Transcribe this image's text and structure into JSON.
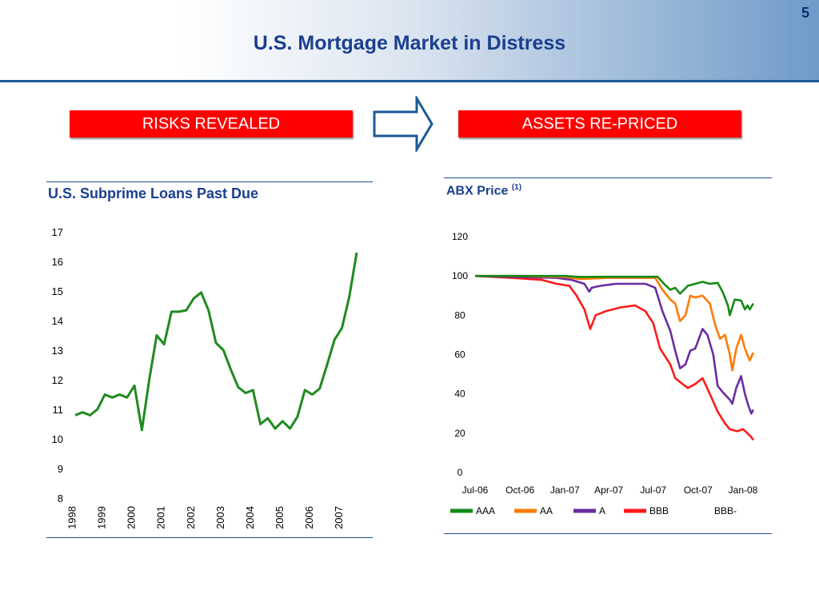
{
  "page": {
    "number": "5",
    "title": "U.S. Mortgage Market in Distress",
    "colors": {
      "banner": "#ff0000",
      "title": "#1b3f8f",
      "rule": "#1a5a96"
    }
  },
  "banners": {
    "left": "RISKS REVEALED",
    "right": "ASSETS RE-PRICED",
    "arrow_icon": "right-arrow-icon"
  },
  "left_panel": {
    "title": "U.S. Subprime Loans Past Due"
  },
  "right_panel": {
    "title": "ABX Price",
    "title_note": "(1)"
  },
  "chart_data": [
    {
      "type": "line",
      "title": "U.S. Subprime Loans Past Due",
      "ylim": [
        8,
        17
      ],
      "yticks": [
        8,
        9,
        10,
        11,
        12,
        13,
        14,
        15,
        16,
        17
      ],
      "xlim": [
        1998,
        2008.3
      ],
      "xticks": [
        "1998",
        "1999",
        "2000",
        "2001",
        "2002",
        "2003",
        "2004",
        "2005",
        "2006",
        "2007"
      ],
      "series": [
        {
          "color": "#1f8a1f",
          "points": [
            [
              1998.0,
              10.8
            ],
            [
              1998.25,
              10.9
            ],
            [
              1998.5,
              10.8
            ],
            [
              1998.75,
              11.0
            ],
            [
              1999.0,
              11.5
            ],
            [
              1999.25,
              11.4
            ],
            [
              1999.5,
              11.5
            ],
            [
              1999.75,
              11.4
            ],
            [
              2000.0,
              11.8
            ],
            [
              2000.25,
              10.3
            ],
            [
              2000.5,
              12.0
            ],
            [
              2000.75,
              13.5
            ],
            [
              2001.0,
              13.2
            ],
            [
              2001.25,
              14.3
            ],
            [
              2001.5,
              14.3
            ],
            [
              2001.75,
              14.35
            ],
            [
              2002.0,
              14.75
            ],
            [
              2002.25,
              14.95
            ],
            [
              2002.5,
              14.35
            ],
            [
              2002.75,
              13.25
            ],
            [
              2003.0,
              13.0
            ],
            [
              2003.25,
              12.35
            ],
            [
              2003.5,
              11.75
            ],
            [
              2003.75,
              11.55
            ],
            [
              2004.0,
              11.65
            ],
            [
              2004.25,
              10.5
            ],
            [
              2004.5,
              10.7
            ],
            [
              2004.75,
              10.35
            ],
            [
              2005.0,
              10.6
            ],
            [
              2005.25,
              10.35
            ],
            [
              2005.5,
              10.75
            ],
            [
              2005.75,
              11.65
            ],
            [
              2006.0,
              11.5
            ],
            [
              2006.25,
              11.7
            ],
            [
              2006.5,
              12.5
            ],
            [
              2006.75,
              13.35
            ],
            [
              2007.0,
              13.75
            ],
            [
              2007.25,
              14.8
            ],
            [
              2007.5,
              16.3
            ]
          ]
        }
      ]
    },
    {
      "type": "line",
      "title": "ABX Price",
      "title_note": "(1)",
      "ylim": [
        0,
        120
      ],
      "yticks": [
        0,
        20,
        40,
        60,
        80,
        100,
        120
      ],
      "xlim": [
        "2006-07-01",
        "2008-01-31"
      ],
      "xticks": [
        "Jul-06",
        "Oct-06",
        "Jan-07",
        "Apr-07",
        "Jul-07",
        "Oct-07",
        "Jan-08"
      ],
      "xtick_dates": [
        "2006-07-01",
        "2006-10-01",
        "2007-01-01",
        "2007-04-01",
        "2007-07-01",
        "2007-10-01",
        "2008-01-01"
      ],
      "legend_position": "bottom",
      "series": [
        {
          "name": "AAA",
          "color": "#138a13",
          "points": [
            [
              "2006-07-01",
              100
            ],
            [
              "2006-10-01",
              100
            ],
            [
              "2007-01-01",
              100
            ],
            [
              "2007-02-01",
              99.5
            ],
            [
              "2007-04-01",
              99.6
            ],
            [
              "2007-07-10",
              99.6
            ],
            [
              "2007-07-25",
              95.5
            ],
            [
              "2007-08-05",
              93
            ],
            [
              "2007-08-15",
              94
            ],
            [
              "2007-08-25",
              91
            ],
            [
              "2007-09-10",
              95
            ],
            [
              "2007-09-25",
              96
            ],
            [
              "2007-10-10",
              97
            ],
            [
              "2007-10-25",
              96
            ],
            [
              "2007-11-10",
              96.5
            ],
            [
              "2007-11-20",
              92
            ],
            [
              "2007-12-01",
              85
            ],
            [
              "2007-12-05",
              80
            ],
            [
              "2007-12-15",
              88
            ],
            [
              "2007-12-28",
              87.5
            ],
            [
              "2008-01-05",
              83
            ],
            [
              "2008-01-10",
              85
            ],
            [
              "2008-01-15",
              83
            ],
            [
              "2008-01-22",
              86
            ]
          ]
        },
        {
          "name": "AA",
          "color": "#ff7a00",
          "points": [
            [
              "2006-07-01",
              100
            ],
            [
              "2006-10-01",
              100
            ],
            [
              "2007-01-01",
              99.5
            ],
            [
              "2007-02-01",
              98.5
            ],
            [
              "2007-04-01",
              99
            ],
            [
              "2007-07-05",
              99
            ],
            [
              "2007-07-20",
              93
            ],
            [
              "2007-08-05",
              88
            ],
            [
              "2007-08-15",
              86
            ],
            [
              "2007-08-25",
              77
            ],
            [
              "2007-09-05",
              80
            ],
            [
              "2007-09-15",
              90
            ],
            [
              "2007-09-25",
              89
            ],
            [
              "2007-10-10",
              90
            ],
            [
              "2007-10-25",
              86
            ],
            [
              "2007-11-05",
              75
            ],
            [
              "2007-11-15",
              68
            ],
            [
              "2007-11-25",
              70
            ],
            [
              "2007-12-05",
              60
            ],
            [
              "2007-12-10",
              52
            ],
            [
              "2007-12-18",
              63
            ],
            [
              "2007-12-28",
              70
            ],
            [
              "2008-01-05",
              63
            ],
            [
              "2008-01-15",
              57
            ],
            [
              "2008-01-22",
              61
            ]
          ]
        },
        {
          "name": "A",
          "color": "#6a2ca0",
          "points": [
            [
              "2006-07-01",
              100
            ],
            [
              "2006-10-01",
              99.5
            ],
            [
              "2006-12-15",
              99
            ],
            [
              "2007-01-15",
              98
            ],
            [
              "2007-02-10",
              96
            ],
            [
              "2007-02-20",
              92
            ],
            [
              "2007-02-25",
              94
            ],
            [
              "2007-03-15",
              95
            ],
            [
              "2007-04-15",
              96
            ],
            [
              "2007-06-15",
              96
            ],
            [
              "2007-07-05",
              94
            ],
            [
              "2007-07-20",
              82
            ],
            [
              "2007-08-05",
              72
            ],
            [
              "2007-08-15",
              62
            ],
            [
              "2007-08-25",
              53
            ],
            [
              "2007-09-05",
              55
            ],
            [
              "2007-09-15",
              62
            ],
            [
              "2007-09-25",
              63
            ],
            [
              "2007-10-10",
              73
            ],
            [
              "2007-10-20",
              70
            ],
            [
              "2007-11-01",
              60
            ],
            [
              "2007-11-10",
              44
            ],
            [
              "2007-11-20",
              41
            ],
            [
              "2007-12-05",
              37
            ],
            [
              "2007-12-10",
              35
            ],
            [
              "2007-12-18",
              43
            ],
            [
              "2007-12-28",
              49
            ],
            [
              "2008-01-05",
              40
            ],
            [
              "2008-01-12",
              34
            ],
            [
              "2008-01-18",
              30
            ],
            [
              "2008-01-22",
              32
            ]
          ]
        },
        {
          "name": "BBB",
          "color": "#ff1a1a",
          "points": [
            [
              "2006-07-01",
              100
            ],
            [
              "2006-09-15",
              99
            ],
            [
              "2006-11-15",
              98
            ],
            [
              "2006-12-15",
              96
            ],
            [
              "2007-01-10",
              95
            ],
            [
              "2007-01-25",
              90
            ],
            [
              "2007-02-10",
              83
            ],
            [
              "2007-02-22",
              73
            ],
            [
              "2007-03-05",
              80
            ],
            [
              "2007-03-25",
              82
            ],
            [
              "2007-04-25",
              84
            ],
            [
              "2007-05-25",
              85
            ],
            [
              "2007-06-15",
              82
            ],
            [
              "2007-07-01",
              76
            ],
            [
              "2007-07-15",
              63
            ],
            [
              "2007-08-05",
              55
            ],
            [
              "2007-08-15",
              48
            ],
            [
              "2007-08-25",
              46
            ],
            [
              "2007-09-10",
              43
            ],
            [
              "2007-09-25",
              45
            ],
            [
              "2007-10-10",
              48
            ],
            [
              "2007-10-25",
              40
            ],
            [
              "2007-11-10",
              31
            ],
            [
              "2007-11-25",
              25
            ],
            [
              "2007-12-05",
              22
            ],
            [
              "2007-12-20",
              21
            ],
            [
              "2008-01-01",
              22
            ],
            [
              "2008-01-10",
              20
            ],
            [
              "2008-01-18",
              18
            ],
            [
              "2008-01-22",
              16.5
            ]
          ]
        },
        {
          "name": "BBB-",
          "color": "#ffffff",
          "points": []
        }
      ]
    }
  ]
}
